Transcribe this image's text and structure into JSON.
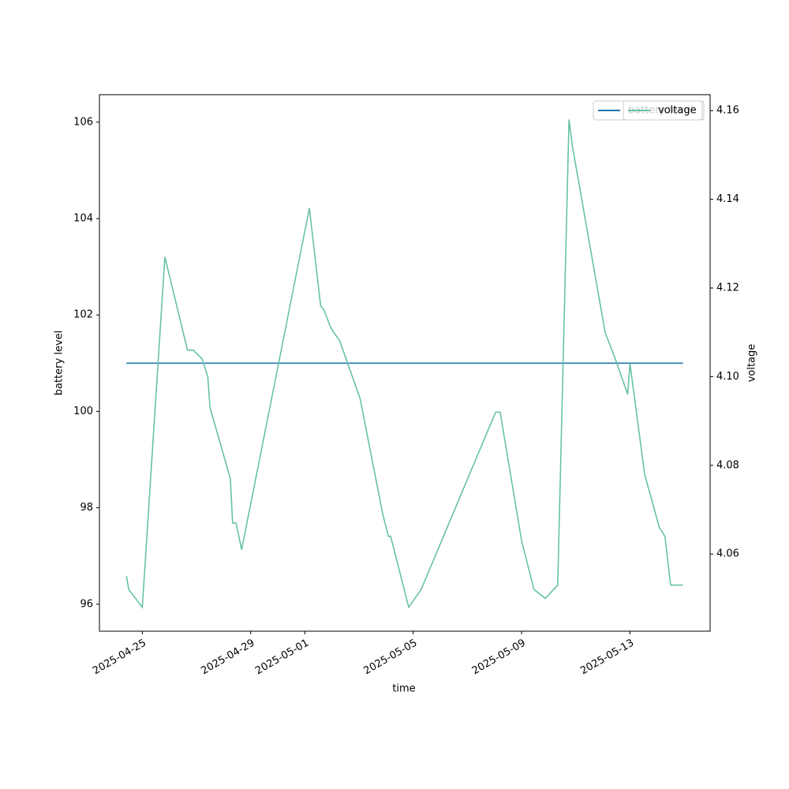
{
  "chart_data": {
    "type": "line",
    "xlabel": "time",
    "ylabel": "battery level",
    "y2label": "voltage",
    "xlim": [
      "2025-04-23 10:00",
      "2025-05-15 23:00"
    ],
    "xticks": [
      "2025-04-25",
      "2025-04-29",
      "2025-05-01",
      "2025-05-05",
      "2025-05-09",
      "2025-05-13"
    ],
    "ylim": [
      95.44,
      106.57
    ],
    "yticks": [
      96,
      98,
      100,
      102,
      104,
      106
    ],
    "y2lim": [
      4.0426,
      4.1636
    ],
    "y2ticks": [
      4.06,
      4.08,
      {
        "value": 4.1,
        "label": "4.10"
      },
      4.12,
      4.14,
      4.16
    ],
    "legend": "upper right",
    "series": [
      {
        "name": "battery level",
        "color": "#1f77b4",
        "axis": "y",
        "x": [
          "2025-04-24 10:00",
          "2025-05-14 23:00"
        ],
        "values": [
          101,
          101
        ]
      },
      {
        "name": "voltage",
        "color": "#66c2a5",
        "axis": "y2",
        "x": [
          "2025-04-24 10:00",
          "2025-04-24 12:00",
          "2025-04-25 00:00",
          "2025-04-25 20:00",
          "2025-04-26 16:00",
          "2025-04-26 21:00",
          "2025-04-27 05:00",
          "2025-04-27 10:00",
          "2025-04-27 12:00",
          "2025-04-28 06:00",
          "2025-04-28 08:00",
          "2025-04-28 11:00",
          "2025-04-28 16:00",
          "2025-05-01 04:00",
          "2025-05-01 14:00",
          "2025-05-01 17:00",
          "2025-05-01 23:00",
          "2025-05-02 07:00",
          "2025-05-03 01:00",
          "2025-05-03 21:00",
          "2025-05-04 02:00",
          "2025-05-04 04:00",
          "2025-05-04 20:00",
          "2025-05-05 07:00",
          "2025-05-08 01:00",
          "2025-05-08 05:00",
          "2025-05-09 00:00",
          "2025-05-09 11:00",
          "2025-05-09 21:00",
          "2025-05-10 08:00",
          "2025-05-10 18:00",
          "2025-05-10 21:00",
          "2025-05-12 02:00",
          "2025-05-12 11:00",
          "2025-05-12 22:00",
          "2025-05-13 00:00",
          "2025-05-13 13:00",
          "2025-05-14 02:00",
          "2025-05-14 07:00",
          "2025-05-14 12:00",
          "2025-05-14 23:00"
        ],
        "values": [
          4.055,
          4.052,
          4.048,
          4.127,
          4.106,
          4.106,
          4.104,
          4.1,
          4.093,
          4.077,
          4.067,
          4.067,
          4.061,
          4.138,
          4.116,
          4.115,
          4.111,
          4.108,
          4.095,
          4.069,
          4.064,
          4.064,
          4.048,
          4.052,
          4.092,
          4.092,
          4.063,
          4.052,
          4.05,
          4.053,
          4.158,
          4.152,
          4.11,
          4.104,
          4.096,
          4.103,
          4.078,
          4.066,
          4.064,
          4.053,
          4.053
        ]
      }
    ]
  }
}
